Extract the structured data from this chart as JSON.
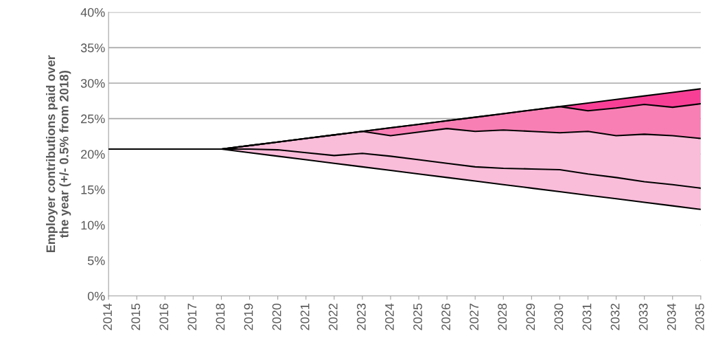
{
  "chart_data": {
    "type": "area",
    "stacked": true,
    "ylabel": "Employer contributions paid over\nthe year (+/- 0.5% from 2018)",
    "categories": [
      "2014",
      "2015",
      "2016",
      "2017",
      "2018",
      "2019",
      "2020",
      "2021",
      "2022",
      "2023",
      "2024",
      "2025",
      "2026",
      "2027",
      "2028",
      "2029",
      "2030",
      "2031",
      "2032",
      "2033",
      "2034",
      "2035"
    ],
    "series": [
      {
        "color": "#ffffff",
        "values": [
          20.7,
          20.7,
          20.7,
          20.7,
          20.7,
          20.2,
          19.7,
          19.2,
          18.7,
          18.2,
          17.7,
          17.2,
          16.7,
          16.2,
          15.7,
          15.2,
          14.7,
          14.2,
          13.7,
          13.2,
          12.7,
          12.2
        ]
      },
      {
        "color": "#f9bcd9",
        "values": [
          0,
          0,
          0,
          0,
          0,
          1.0,
          2.0,
          3.0,
          4.0,
          5.0,
          4.9,
          5.9,
          6.9,
          7.0,
          7.7,
          8.0,
          8.3,
          9.0,
          8.9,
          9.6,
          9.9,
          10.0
        ]
      },
      {
        "color": "#f87fb4",
        "values": [
          0,
          0,
          0,
          0,
          0,
          0,
          0,
          0,
          0,
          0,
          1.1,
          1.1,
          1.1,
          2.0,
          2.3,
          3.0,
          3.7,
          2.9,
          3.9,
          4.2,
          4.0,
          4.9
        ]
      },
      {
        "color": "#f83f96",
        "values": [
          0,
          0,
          0,
          0,
          0,
          0,
          0,
          0,
          0,
          0,
          0,
          0,
          0,
          0,
          0,
          0,
          0,
          1.1,
          1.2,
          1.2,
          2.1,
          2.1
        ]
      },
      {
        "type": "line",
        "color": "#000000",
        "values": [
          20.7,
          20.7,
          20.7,
          20.7,
          20.7,
          20.7,
          20.6,
          20.2,
          19.8,
          20.1,
          19.7,
          19.2,
          18.7,
          18.2,
          18.0,
          17.9,
          17.8,
          17.2,
          16.7,
          16.1,
          15.7,
          15.2
        ]
      }
    ],
    "ylim": [
      0,
      40
    ],
    "yticks": [
      {
        "value": 0,
        "label": "0%"
      },
      {
        "value": 5,
        "label": "5%"
      },
      {
        "value": 10,
        "label": "10%"
      },
      {
        "value": 15,
        "label": "15%"
      },
      {
        "value": 20,
        "label": "20%"
      },
      {
        "value": 25,
        "label": "25%"
      },
      {
        "value": 30,
        "label": "30%"
      },
      {
        "value": 35,
        "label": "35%"
      },
      {
        "value": 40,
        "label": "40%"
      }
    ],
    "grid": "y"
  }
}
